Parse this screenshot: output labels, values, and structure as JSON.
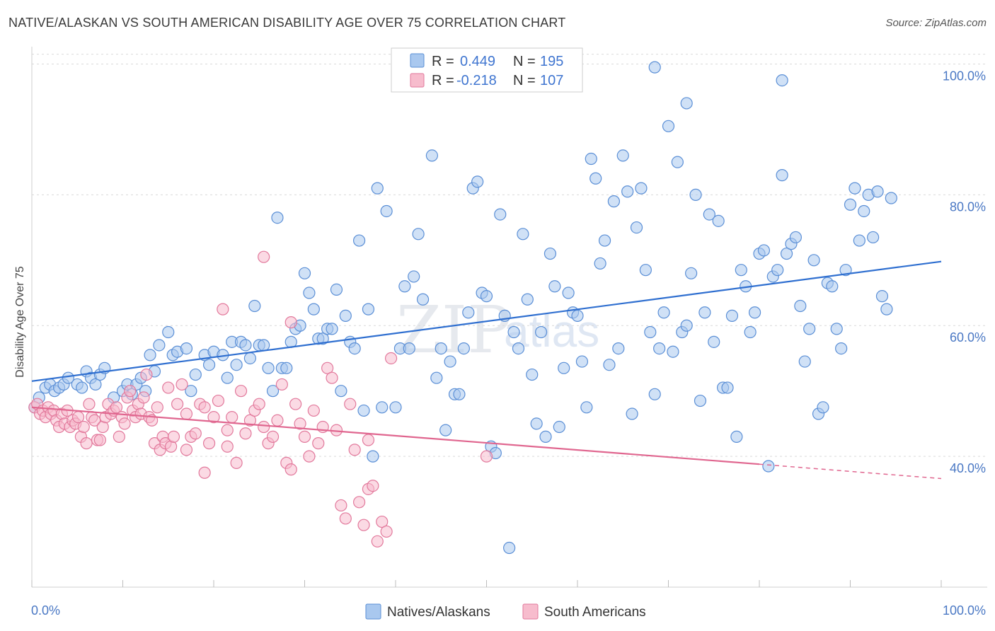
{
  "title": "NATIVE/ALASKAN VS SOUTH AMERICAN DISABILITY AGE OVER 75 CORRELATION CHART",
  "source": "Source: ZipAtlas.com",
  "watermark": {
    "zip": "ZIP",
    "atlas": "atlas"
  },
  "legend": {
    "rows": [
      {
        "r_label": "R =",
        "r_value": "0.449",
        "n_label": "N =",
        "n_value": "195",
        "color": "#a9c8ef",
        "stroke": "#5b8fd6"
      },
      {
        "r_label": "R =",
        "r_value": "-0.218",
        "n_label": "N =",
        "n_value": "107",
        "color": "#f7bccd",
        "stroke": "#e2799c"
      }
    ]
  },
  "bottom_legend": [
    {
      "label": "Natives/Alaskans",
      "color": "#a9c8ef",
      "stroke": "#5b8fd6"
    },
    {
      "label": "South Americans",
      "color": "#f7bccd",
      "stroke": "#e2799c"
    }
  ],
  "chart_data": {
    "type": "scatter",
    "title": "NATIVE/ALASKAN VS SOUTH AMERICAN DISABILITY AGE OVER 75 CORRELATION CHART",
    "xlabel": "",
    "ylabel": "Disability Age Over 75",
    "xlim": [
      0,
      100
    ],
    "ylim": [
      20,
      102
    ],
    "x_tick_labels": [
      "0.0%",
      "100.0%"
    ],
    "y_tick_labels": [
      {
        "value": 40,
        "label": "40.0%"
      },
      {
        "value": 60,
        "label": "60.0%"
      },
      {
        "value": 80,
        "label": "80.0%"
      },
      {
        "value": 100,
        "label": "100.0%"
      }
    ],
    "grid": true,
    "legend_position": "top-center",
    "series": [
      {
        "name": "Natives/Alaskans",
        "color": "#a9c8ef",
        "stroke": "#5b8fd6",
        "trend": {
          "x": [
            0,
            100
          ],
          "y": [
            51.5,
            69.8
          ],
          "color": "#2f6fd0"
        },
        "points": [
          [
            0.3,
            47.5
          ],
          [
            0.8,
            49
          ],
          [
            1.5,
            50.5
          ],
          [
            2,
            51
          ],
          [
            2.5,
            50
          ],
          [
            3,
            50.5
          ],
          [
            3.5,
            51
          ],
          [
            4,
            52
          ],
          [
            5,
            51
          ],
          [
            5.5,
            50.5
          ],
          [
            6,
            53
          ],
          [
            6.5,
            52
          ],
          [
            7,
            51
          ],
          [
            7.5,
            52.5
          ],
          [
            8,
            53.5
          ],
          [
            9,
            49
          ],
          [
            10,
            50
          ],
          [
            10.5,
            51
          ],
          [
            11,
            49.5
          ],
          [
            11.5,
            51
          ],
          [
            12,
            52
          ],
          [
            12.5,
            50
          ],
          [
            13,
            55.5
          ],
          [
            13.5,
            53
          ],
          [
            14,
            57
          ],
          [
            15,
            59
          ],
          [
            15.5,
            55.5
          ],
          [
            16,
            56
          ],
          [
            17,
            56.5
          ],
          [
            17.5,
            50
          ],
          [
            18,
            52.5
          ],
          [
            19,
            55.5
          ],
          [
            19.5,
            54
          ],
          [
            20,
            56
          ],
          [
            21,
            55.5
          ],
          [
            21.5,
            52
          ],
          [
            22,
            57.5
          ],
          [
            22.5,
            54
          ],
          [
            23,
            57.5
          ],
          [
            23.5,
            57
          ],
          [
            24,
            55
          ],
          [
            24.5,
            63
          ],
          [
            25,
            57
          ],
          [
            25.5,
            57
          ],
          [
            26,
            53.5
          ],
          [
            26.5,
            50
          ],
          [
            27,
            76.5
          ],
          [
            27.5,
            53.5
          ],
          [
            28,
            53.5
          ],
          [
            28.5,
            57.5
          ],
          [
            29,
            59.5
          ],
          [
            29.5,
            60
          ],
          [
            30,
            68
          ],
          [
            30.5,
            65
          ],
          [
            31,
            62.5
          ],
          [
            31.5,
            58
          ],
          [
            32,
            58
          ],
          [
            32.5,
            59.5
          ],
          [
            33,
            59.5
          ],
          [
            33.5,
            65.5
          ],
          [
            34,
            50
          ],
          [
            34.5,
            61.5
          ],
          [
            35,
            57.5
          ],
          [
            35.5,
            56.5
          ],
          [
            36,
            73
          ],
          [
            36.5,
            47
          ],
          [
            37,
            62.5
          ],
          [
            37.5,
            40
          ],
          [
            38,
            81
          ],
          [
            38.5,
            47.5
          ],
          [
            39,
            77.5
          ],
          [
            40,
            47.5
          ],
          [
            40.5,
            56.5
          ],
          [
            41,
            66
          ],
          [
            41.5,
            56.5
          ],
          [
            42,
            67.5
          ],
          [
            42.5,
            74
          ],
          [
            43,
            64
          ],
          [
            44,
            86
          ],
          [
            44.5,
            52
          ],
          [
            45,
            56.5
          ],
          [
            45.5,
            44
          ],
          [
            46,
            54.5
          ],
          [
            46.5,
            49.5
          ],
          [
            47,
            49.5
          ],
          [
            47.5,
            56.5
          ],
          [
            48,
            62
          ],
          [
            48.5,
            81
          ],
          [
            49,
            82
          ],
          [
            49.5,
            65
          ],
          [
            50,
            64.5
          ],
          [
            50.5,
            41.5
          ],
          [
            51,
            40.5
          ],
          [
            51.5,
            77
          ],
          [
            52,
            61.5
          ],
          [
            52.5,
            26
          ],
          [
            53,
            59
          ],
          [
            53.5,
            56.5
          ],
          [
            54,
            74
          ],
          [
            54.5,
            64
          ],
          [
            55,
            52.5
          ],
          [
            55.5,
            45
          ],
          [
            56,
            59
          ],
          [
            56.5,
            43
          ],
          [
            57,
            71
          ],
          [
            57.5,
            66
          ],
          [
            58,
            44.5
          ],
          [
            58.5,
            53.5
          ],
          [
            59,
            65
          ],
          [
            59.5,
            62
          ],
          [
            60,
            61.5
          ],
          [
            60.5,
            54.5
          ],
          [
            61,
            47.5
          ],
          [
            61.5,
            85.5
          ],
          [
            62,
            82.5
          ],
          [
            62.5,
            69.5
          ],
          [
            63,
            73
          ],
          [
            63.5,
            54
          ],
          [
            64,
            79
          ],
          [
            64.5,
            56.5
          ],
          [
            65,
            86
          ],
          [
            65.5,
            80.5
          ],
          [
            66,
            46.5
          ],
          [
            66.5,
            75
          ],
          [
            67,
            81
          ],
          [
            67.5,
            68.5
          ],
          [
            68,
            59
          ],
          [
            68.5,
            49.5
          ],
          [
            69,
            56.5
          ],
          [
            69.5,
            62
          ],
          [
            70,
            90.5
          ],
          [
            70.5,
            56
          ],
          [
            71,
            85
          ],
          [
            71.5,
            59
          ],
          [
            72,
            60
          ],
          [
            72.5,
            68
          ],
          [
            73,
            80
          ],
          [
            73.5,
            48.5
          ],
          [
            74,
            62
          ],
          [
            74.5,
            77
          ],
          [
            75,
            57.5
          ],
          [
            75.5,
            76
          ],
          [
            76,
            50.5
          ],
          [
            76.5,
            50.5
          ],
          [
            77,
            61.5
          ],
          [
            77.5,
            43
          ],
          [
            78,
            68.5
          ],
          [
            78.5,
            66
          ],
          [
            79,
            59
          ],
          [
            79.5,
            62
          ],
          [
            80,
            71
          ],
          [
            80.5,
            71.5
          ],
          [
            81,
            38.5
          ],
          [
            81.5,
            67.5
          ],
          [
            82,
            68.5
          ],
          [
            82.5,
            83
          ],
          [
            83,
            71
          ],
          [
            83.5,
            72.5
          ],
          [
            84,
            73.5
          ],
          [
            84.5,
            63
          ],
          [
            85,
            54.5
          ],
          [
            85.5,
            59.5
          ],
          [
            86,
            70
          ],
          [
            86.5,
            46.5
          ],
          [
            87,
            47.5
          ],
          [
            87.5,
            66.5
          ],
          [
            88,
            66
          ],
          [
            88.5,
            59.5
          ],
          [
            89,
            56.5
          ],
          [
            89.5,
            68.5
          ],
          [
            90,
            78.5
          ],
          [
            90.5,
            81
          ],
          [
            91,
            73
          ],
          [
            91.5,
            77.5
          ],
          [
            92,
            80
          ],
          [
            92.5,
            73.5
          ],
          [
            93,
            80.5
          ],
          [
            93.5,
            64.5
          ],
          [
            94,
            62.5
          ],
          [
            94.5,
            79.5
          ],
          [
            68.5,
            99.5
          ],
          [
            82.5,
            97.5
          ],
          [
            72,
            94
          ]
        ]
      },
      {
        "name": "South Americans",
        "color": "#f7bccd",
        "stroke": "#e2799c",
        "trend": {
          "x": [
            0,
            80
          ],
          "y": [
            47.5,
            38.8
          ],
          "color": "#e0668f",
          "dashed_to": {
            "x": 100,
            "y": 36.6
          }
        },
        "points": [
          [
            0.3,
            47.5
          ],
          [
            0.6,
            48
          ],
          [
            0.9,
            46.5
          ],
          [
            1.2,
            47
          ],
          [
            1.5,
            46
          ],
          [
            1.8,
            47.5
          ],
          [
            2.1,
            46.5
          ],
          [
            2.4,
            47
          ],
          [
            2.7,
            45.5
          ],
          [
            3,
            44.5
          ],
          [
            3.3,
            46.5
          ],
          [
            3.6,
            45
          ],
          [
            3.9,
            47
          ],
          [
            4.2,
            44.5
          ],
          [
            4.5,
            45.5
          ],
          [
            4.8,
            45
          ],
          [
            5.1,
            46
          ],
          [
            5.4,
            43
          ],
          [
            5.7,
            44.5
          ],
          [
            6,
            42
          ],
          [
            6.3,
            48
          ],
          [
            6.6,
            46
          ],
          [
            6.9,
            45.5
          ],
          [
            7.2,
            42.5
          ],
          [
            7.5,
            42.5
          ],
          [
            7.8,
            44.5
          ],
          [
            8.1,
            46
          ],
          [
            8.4,
            48
          ],
          [
            8.7,
            46.5
          ],
          [
            9,
            47
          ],
          [
            9.3,
            47.5
          ],
          [
            9.6,
            43
          ],
          [
            9.9,
            46
          ],
          [
            10.2,
            45
          ],
          [
            10.5,
            49
          ],
          [
            10.8,
            50
          ],
          [
            11.1,
            47
          ],
          [
            11.4,
            46
          ],
          [
            11.7,
            48
          ],
          [
            12,
            46.5
          ],
          [
            12.3,
            49
          ],
          [
            12.6,
            52.5
          ],
          [
            12.9,
            46
          ],
          [
            13.2,
            45.5
          ],
          [
            13.5,
            42
          ],
          [
            13.8,
            47.5
          ],
          [
            14.1,
            41
          ],
          [
            14.4,
            43
          ],
          [
            14.7,
            42
          ],
          [
            15,
            50.5
          ],
          [
            15.3,
            41.5
          ],
          [
            15.6,
            43
          ],
          [
            16,
            48
          ],
          [
            16.5,
            51
          ],
          [
            17,
            46.5
          ],
          [
            17.5,
            43
          ],
          [
            18,
            43.5
          ],
          [
            18.5,
            48
          ],
          [
            19,
            37.5
          ],
          [
            19.5,
            42
          ],
          [
            20,
            46
          ],
          [
            20.5,
            48.5
          ],
          [
            21,
            62.5
          ],
          [
            21.5,
            41.5
          ],
          [
            22,
            46
          ],
          [
            22.5,
            39
          ],
          [
            23,
            50
          ],
          [
            23.5,
            43.5
          ],
          [
            24,
            45.5
          ],
          [
            24.5,
            47
          ],
          [
            25,
            48
          ],
          [
            25.5,
            44.5
          ],
          [
            26,
            42
          ],
          [
            26.5,
            43
          ],
          [
            27,
            45.5
          ],
          [
            27.5,
            51
          ],
          [
            28,
            39
          ],
          [
            28.5,
            38
          ],
          [
            29,
            48
          ],
          [
            29.5,
            45
          ],
          [
            30,
            43
          ],
          [
            30.5,
            40
          ],
          [
            31,
            47
          ],
          [
            31.5,
            42
          ],
          [
            32,
            44.5
          ],
          [
            32.5,
            53.5
          ],
          [
            33,
            52
          ],
          [
            33.5,
            44
          ],
          [
            34,
            32.5
          ],
          [
            34.5,
            30.5
          ],
          [
            35,
            48
          ],
          [
            35.5,
            41
          ],
          [
            36,
            33
          ],
          [
            36.5,
            29.5
          ],
          [
            37,
            35
          ],
          [
            37.5,
            35.5
          ],
          [
            38,
            27
          ],
          [
            38.5,
            30
          ],
          [
            39,
            28.5
          ],
          [
            39.5,
            55
          ],
          [
            28.5,
            60.5
          ],
          [
            25.5,
            70.5
          ],
          [
            19,
            47.5
          ],
          [
            17,
            41
          ],
          [
            21.5,
            44
          ],
          [
            37,
            42.5
          ],
          [
            50,
            40
          ]
        ]
      }
    ]
  }
}
